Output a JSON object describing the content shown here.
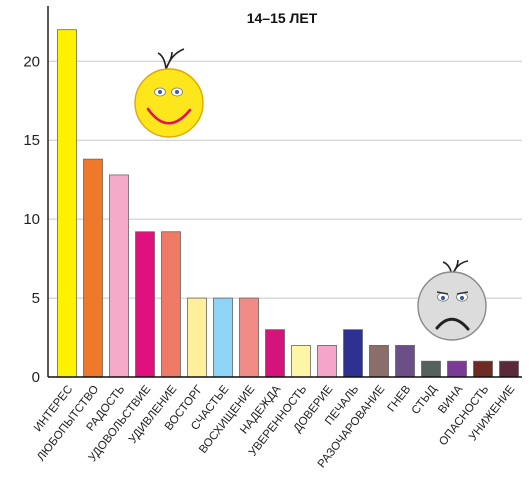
{
  "chart_data": {
    "type": "bar",
    "title": "14–15 ЛЕТ",
    "xlabel": "",
    "ylabel": "",
    "ylim": [
      0,
      23.5
    ],
    "yticks": [
      "0",
      "5",
      "10",
      "15",
      "20"
    ],
    "grid": "horizontal",
    "categories": [
      "ИНТЕРЕС",
      "ЛЮБОПЫТСТВО",
      "РАДОСТЬ",
      "УДОВОЛЬСТВИЕ",
      "УДИВЛЕНИЕ",
      "ВОСТОРГ",
      "СЧАСТЬЕ",
      "ВОСХИЩЕНИЕ",
      "НАДЕЖДА",
      "УВЕРЕННОСТЬ",
      "ДОВЕРИЕ",
      "ПЕЧАЛЬ",
      "РАЗОЧАРОВАНИЕ",
      "ГНЕВ",
      "СТЫД",
      "ВИНА",
      "ОПАСНОСТЬ",
      "УНИЖЕНИЕ"
    ],
    "values": [
      22,
      13.8,
      12.8,
      9.2,
      9.2,
      5,
      5,
      5,
      3,
      2,
      2,
      3,
      2,
      2,
      1,
      1,
      1,
      1
    ],
    "colors": [
      "#fff200",
      "#f0782a",
      "#f5a9c8",
      "#e0117f",
      "#ef7b66",
      "#fdef9c",
      "#8dd4f6",
      "#f08a84",
      "#d4147a",
      "#fdf6a6",
      "#f5a6c8",
      "#2e3192",
      "#8b6d6a",
      "#6d4f87",
      "#55615a",
      "#7a3a96",
      "#6e2b25",
      "#5a2a3a"
    ],
    "icons": [
      "happy-face-icon",
      "sad-face-icon"
    ]
  }
}
